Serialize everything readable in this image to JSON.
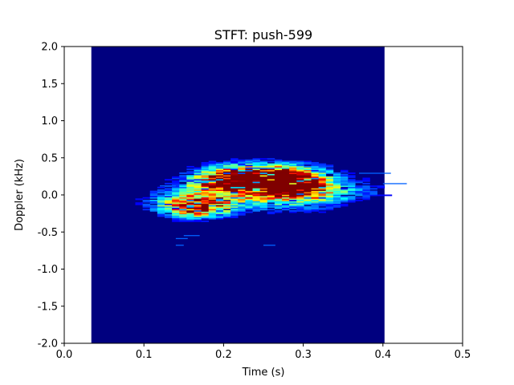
{
  "chart_data": {
    "type": "heatmap",
    "title": "STFT: push-599",
    "xlabel": "Time (s)",
    "ylabel": "Doppler (kHz)",
    "xlim": [
      0.0,
      0.5
    ],
    "ylim": [
      -2.0,
      2.0
    ],
    "x_ticks": [
      "0.0",
      "0.1",
      "0.2",
      "0.3",
      "0.4",
      "0.5"
    ],
    "y_ticks": [
      "-2.0",
      "-1.5",
      "-1.0",
      "-0.5",
      "0.0",
      "0.5",
      "1.0",
      "1.5",
      "2.0"
    ],
    "grid": false,
    "colormap": "jet",
    "background_color": "#00007f",
    "extent": {
      "time_start": 0.034,
      "time_end": 0.402,
      "doppler_min": -2.0,
      "doppler_max": 2.0
    },
    "hotspots": [
      {
        "time": 0.245,
        "doppler": 0.25,
        "intensity": 1.0,
        "time_spread": 0.045,
        "doppler_spread": 0.11
      },
      {
        "time": 0.275,
        "doppler": 0.13,
        "intensity": 0.95,
        "time_spread": 0.025,
        "doppler_spread": 0.12
      },
      {
        "time": 0.2,
        "doppler": 0.15,
        "intensity": 0.75,
        "time_spread": 0.03,
        "doppler_spread": 0.12
      },
      {
        "time": 0.165,
        "doppler": -0.18,
        "intensity": 0.85,
        "time_spread": 0.025,
        "doppler_spread": 0.09
      },
      {
        "time": 0.14,
        "doppler": -0.1,
        "intensity": 0.4,
        "time_spread": 0.03,
        "doppler_spread": 0.12
      },
      {
        "time": 0.31,
        "doppler": 0.05,
        "intensity": 0.45,
        "time_spread": 0.025,
        "doppler_spread": 0.15
      },
      {
        "time": 0.23,
        "doppler": 0.0,
        "intensity": 0.5,
        "time_spread": 0.05,
        "doppler_spread": 0.15
      },
      {
        "time": 0.36,
        "doppler": 0.05,
        "intensity": 0.2,
        "time_spread": 0.04,
        "doppler_spread": 0.12
      }
    ]
  }
}
